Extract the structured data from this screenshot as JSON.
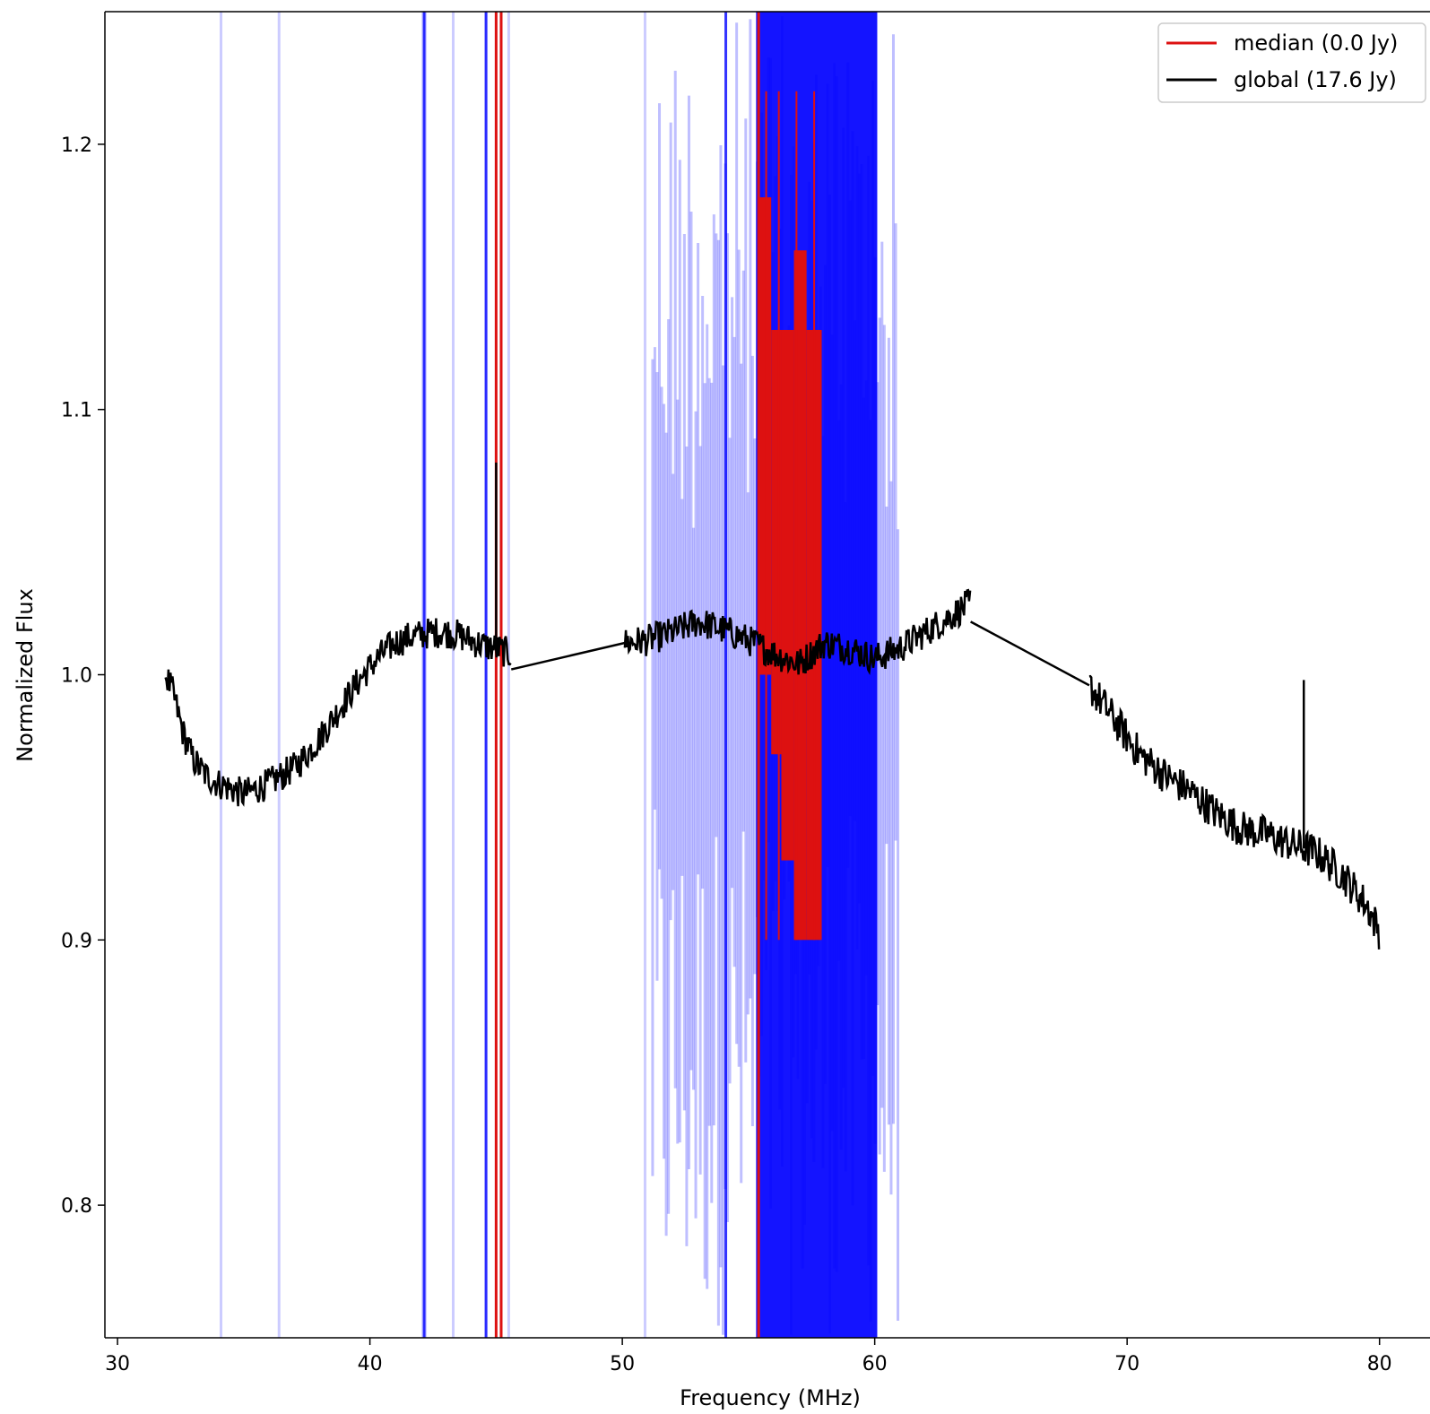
{
  "chart_data": {
    "type": "line",
    "title": "",
    "xlabel": "Frequency (MHz)",
    "ylabel": "Normalized Flux",
    "xlim": [
      29.5,
      82
    ],
    "ylim": [
      0.75,
      1.25
    ],
    "xticks": [
      30,
      40,
      50,
      60,
      70,
      80
    ],
    "yticks": [
      0.8,
      0.9,
      1.0,
      1.1,
      1.2
    ],
    "xtick_labels": [
      "30",
      "40",
      "50",
      "60",
      "70",
      "80"
    ],
    "ytick_labels": [
      "0.8",
      "0.9",
      "1.0",
      "1.1",
      "1.2"
    ],
    "grid": false,
    "legend_position": "top-right",
    "colors": {
      "median": "#dd1111",
      "global": "#000000",
      "flags": "#0000ff"
    },
    "series": [
      {
        "name": "median (0.0 Jy)",
        "color": "#dd1111",
        "vertical_lines_at": [
          45.0,
          45.2,
          55.4
        ],
        "band": {
          "x": [
            55.4,
            55.9,
            56.3,
            56.8,
            57.3,
            57.9
          ],
          "top": [
            1.18,
            1.13,
            1.13,
            1.16,
            1.13,
            1.16
          ],
          "bottom": [
            1.0,
            0.97,
            0.93,
            0.9,
            0.9,
            0.97
          ]
        }
      },
      {
        "name": "global (17.6 Jy)",
        "color": "#000000",
        "anchors": [
          [
            31.9,
            1.0
          ],
          [
            32.2,
            0.993
          ],
          [
            32.6,
            0.978
          ],
          [
            33.0,
            0.968
          ],
          [
            33.5,
            0.962
          ],
          [
            34.0,
            0.959
          ],
          [
            34.5,
            0.957
          ],
          [
            35.0,
            0.955
          ],
          [
            35.5,
            0.957
          ],
          [
            36.0,
            0.959
          ],
          [
            36.5,
            0.962
          ],
          [
            37.0,
            0.965
          ],
          [
            37.5,
            0.97
          ],
          [
            38.0,
            0.976
          ],
          [
            38.5,
            0.983
          ],
          [
            39.0,
            0.99
          ],
          [
            39.5,
            0.997
          ],
          [
            40.0,
            1.003
          ],
          [
            40.5,
            1.008
          ],
          [
            41.0,
            1.012
          ],
          [
            41.5,
            1.014
          ],
          [
            42.0,
            1.015
          ],
          [
            42.5,
            1.016
          ],
          [
            43.0,
            1.016
          ],
          [
            43.5,
            1.015
          ],
          [
            44.0,
            1.013
          ],
          [
            44.5,
            1.011
          ],
          [
            45.0,
            1.01
          ],
          [
            45.5,
            1.008
          ]
        ],
        "segments": [
          {
            "start": 31.9,
            "end": 45.6,
            "noise": 0.006
          },
          {
            "start": 50.1,
            "end": 63.8,
            "noise": 0.006
          },
          {
            "start": 68.5,
            "end": 80.0,
            "noise": 0.007
          }
        ],
        "anchors_mid": [
          [
            50.1,
            1.012
          ],
          [
            51.0,
            1.013
          ],
          [
            52.0,
            1.016
          ],
          [
            53.0,
            1.02
          ],
          [
            54.0,
            1.017
          ],
          [
            55.0,
            1.013
          ],
          [
            56.0,
            1.008
          ],
          [
            57.0,
            1.004
          ],
          [
            58.0,
            1.012
          ],
          [
            59.0,
            1.01
          ],
          [
            60.0,
            1.006
          ],
          [
            61.0,
            1.01
          ],
          [
            62.0,
            1.016
          ],
          [
            63.0,
            1.022
          ],
          [
            63.8,
            1.027
          ]
        ],
        "anchors_right": [
          [
            68.5,
            0.996
          ],
          [
            69.5,
            0.983
          ],
          [
            70.5,
            0.97
          ],
          [
            71.5,
            0.962
          ],
          [
            72.5,
            0.956
          ],
          [
            73.5,
            0.948
          ],
          [
            74.5,
            0.942
          ],
          [
            75.5,
            0.94
          ],
          [
            76.5,
            0.936
          ],
          [
            77.5,
            0.933
          ],
          [
            78.5,
            0.925
          ],
          [
            79.5,
            0.913
          ],
          [
            80.0,
            0.903
          ]
        ],
        "bridges": [
          [
            [
              45.6,
              1.002
            ],
            [
              50.1,
              1.012
            ]
          ],
          [
            [
              63.8,
              1.02
            ],
            [
              68.5,
              0.996
            ]
          ]
        ],
        "spikes": [
          [
            45.0,
            1.08
          ],
          [
            77.0,
            0.998
          ]
        ]
      }
    ],
    "flag_lines": {
      "color": "#0000ff",
      "sparse_x": [
        34.1,
        36.4,
        42.1,
        42.2,
        43.3,
        44.6,
        45.5,
        50.9
      ],
      "dense_range": [
        51.2,
        61.0
      ],
      "solid_range": [
        55.3,
        60.1
      ],
      "dark_x": [
        42.15,
        44.6,
        54.1
      ]
    }
  }
}
